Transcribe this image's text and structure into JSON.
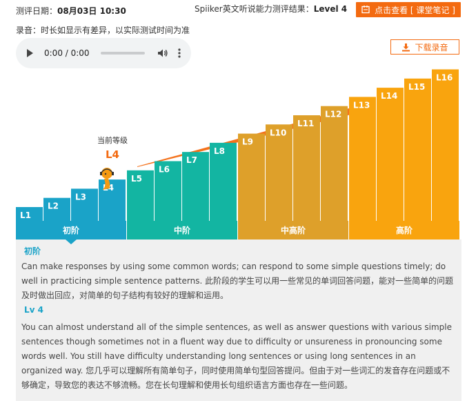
{
  "header": {
    "date_label": "测评日期：",
    "date_value": "08月03日 10:30",
    "result_label": "Spiiker英文听说能力测评结果：",
    "result_value": "Level 4",
    "notes_button": "点击查看 [ 课堂笔记 ]"
  },
  "recording": {
    "note": "录音：时长如显示有差异，以实际测试时间为准",
    "time": "0:00 / 0:00",
    "progress": 0,
    "download_button": "下载录音"
  },
  "chart_data": {
    "type": "bar",
    "current_level_label": "当前等级",
    "current_level": "L4",
    "categories": [
      "L1",
      "L2",
      "L3",
      "L4",
      "L5",
      "L6",
      "L7",
      "L8",
      "L9",
      "L10",
      "L11",
      "L12",
      "L13",
      "L14",
      "L15",
      "L16"
    ],
    "values": [
      1,
      2,
      3,
      4,
      5,
      6,
      7,
      8,
      9,
      10,
      11,
      12,
      13,
      14,
      15,
      16
    ],
    "stages": [
      {
        "name": "初阶",
        "from": 1,
        "to": 4,
        "color": "#1aa3c8"
      },
      {
        "name": "中阶",
        "from": 5,
        "to": 8,
        "color": "#13b5a2"
      },
      {
        "name": "中高阶",
        "from": 9,
        "to": 12,
        "color": "#dea02a"
      },
      {
        "name": "高阶",
        "from": 13,
        "to": 16,
        "color": "#f9a40e"
      }
    ],
    "arrow_color": "#f36a10"
  },
  "description": {
    "stage_title": "初阶",
    "stage_text": "Can make responses by using some common words; can respond to some simple questions timely; do well in practicing simple sentence patterns. 此阶段的学生可以用一些常见的单词回答问题，能对一些简单的问题及时做出回应，对简单的句子结构有较好的理解和运用。",
    "level_title": "Lv 4",
    "level_text": "You can almost understand all of the simple sentences, as well as answer questions with various simple sentences though sometimes not in a fluent way due to difficulty or unsureness in pronouncing some words well. You still have difficulty understanding long sentences or using long sentences in an organized way. 您几乎可以理解所有简单句子，同时使用简单句型回答提问。但由于对一些词汇的发音存在问题或不够确定，导致您的表达不够流畅。您在长句理解和使用长句组织语言方面也存在一些问题。"
  }
}
